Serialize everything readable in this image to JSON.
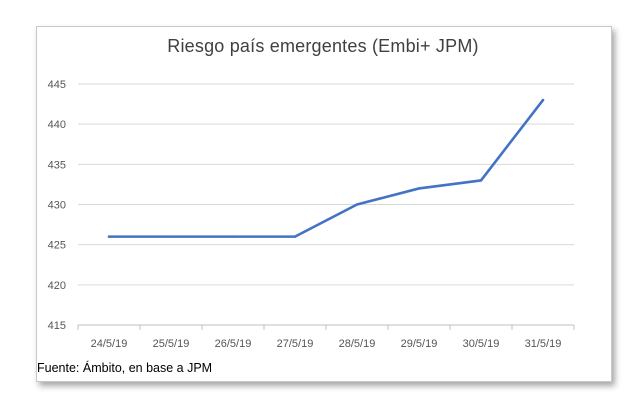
{
  "chart_data": {
    "type": "line",
    "title": "Riesgo país emergentes (Embi+ JPM)",
    "categories": [
      "24/5/19",
      "25/5/19",
      "26/5/19",
      "27/5/19",
      "28/5/19",
      "29/5/19",
      "30/5/19",
      "31/5/19"
    ],
    "series": [
      {
        "values": [
          426,
          426,
          426,
          426,
          430,
          432,
          433,
          443
        ]
      }
    ],
    "ylim": [
      415,
      445
    ],
    "yticks": [
      "445",
      "440",
      "435",
      "430",
      "425",
      "420",
      "415"
    ],
    "grid": true,
    "line_color": "#4472c4"
  },
  "source_note": "Fuente: Ámbito, en base a  JPM"
}
